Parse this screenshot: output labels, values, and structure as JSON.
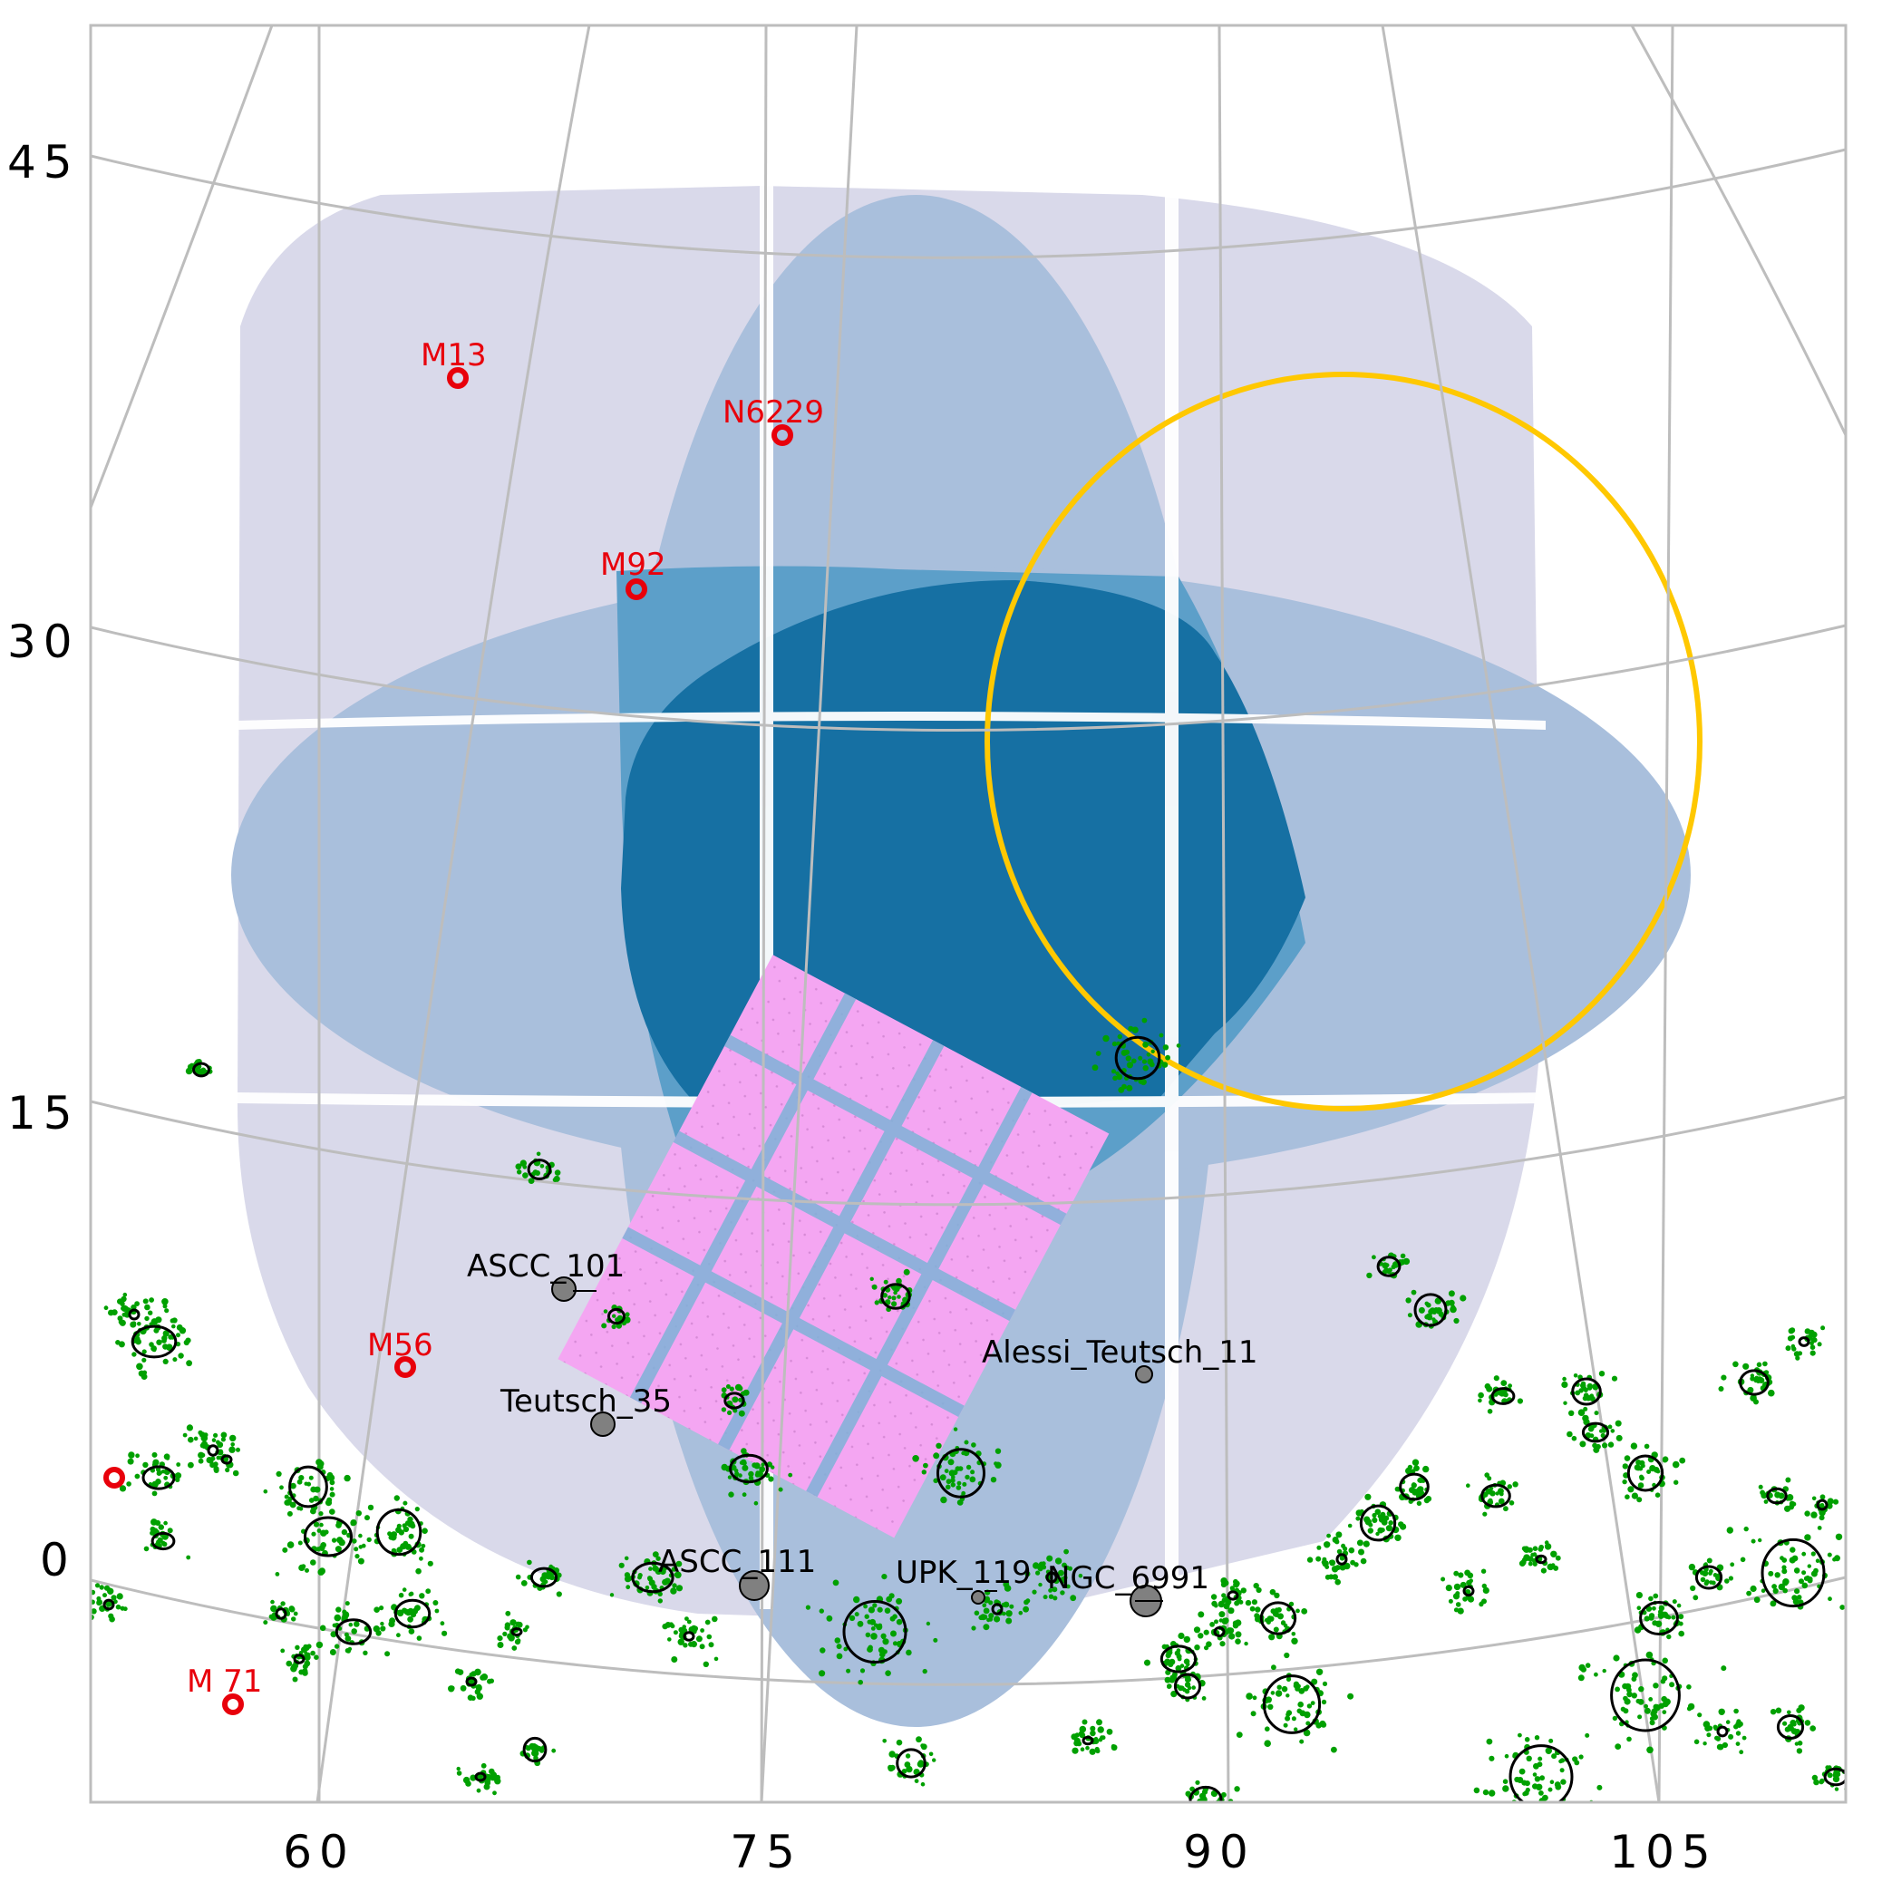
{
  "chart_data": {
    "type": "sky-map",
    "xlabel": "",
    "ylabel": "",
    "x_ticks": [
      "60",
      "75",
      "90",
      "105"
    ],
    "y_ticks": [
      "45",
      "30",
      "15",
      "0"
    ],
    "colors": {
      "outer_footprint": "#d9d9ea",
      "middle_footprint": "#a9bfdc",
      "inner_footprint": "#5c9fc9",
      "core_footprint": "#1670a3",
      "pink_tiles": "#f4a6f2",
      "yellow_circle": "#ffc800",
      "grid": "#bdbdbd",
      "member_stars": "#00a000",
      "globular_marker": "#e8000b",
      "open_cluster_fill": "#808080"
    },
    "globular_clusters": [
      {
        "name": "M13"
      },
      {
        "name": "N6229"
      },
      {
        "name": "M92"
      },
      {
        "name": "M56"
      },
      {
        "name": "M 71"
      }
    ],
    "open_clusters": [
      {
        "name": "ASCC_101"
      },
      {
        "name": "Teutsch_35"
      },
      {
        "name": "Alessi_Teutsch_11"
      },
      {
        "name": "ASCC_111"
      },
      {
        "name": "UPK_119"
      },
      {
        "name": "NGC_6991"
      }
    ]
  }
}
